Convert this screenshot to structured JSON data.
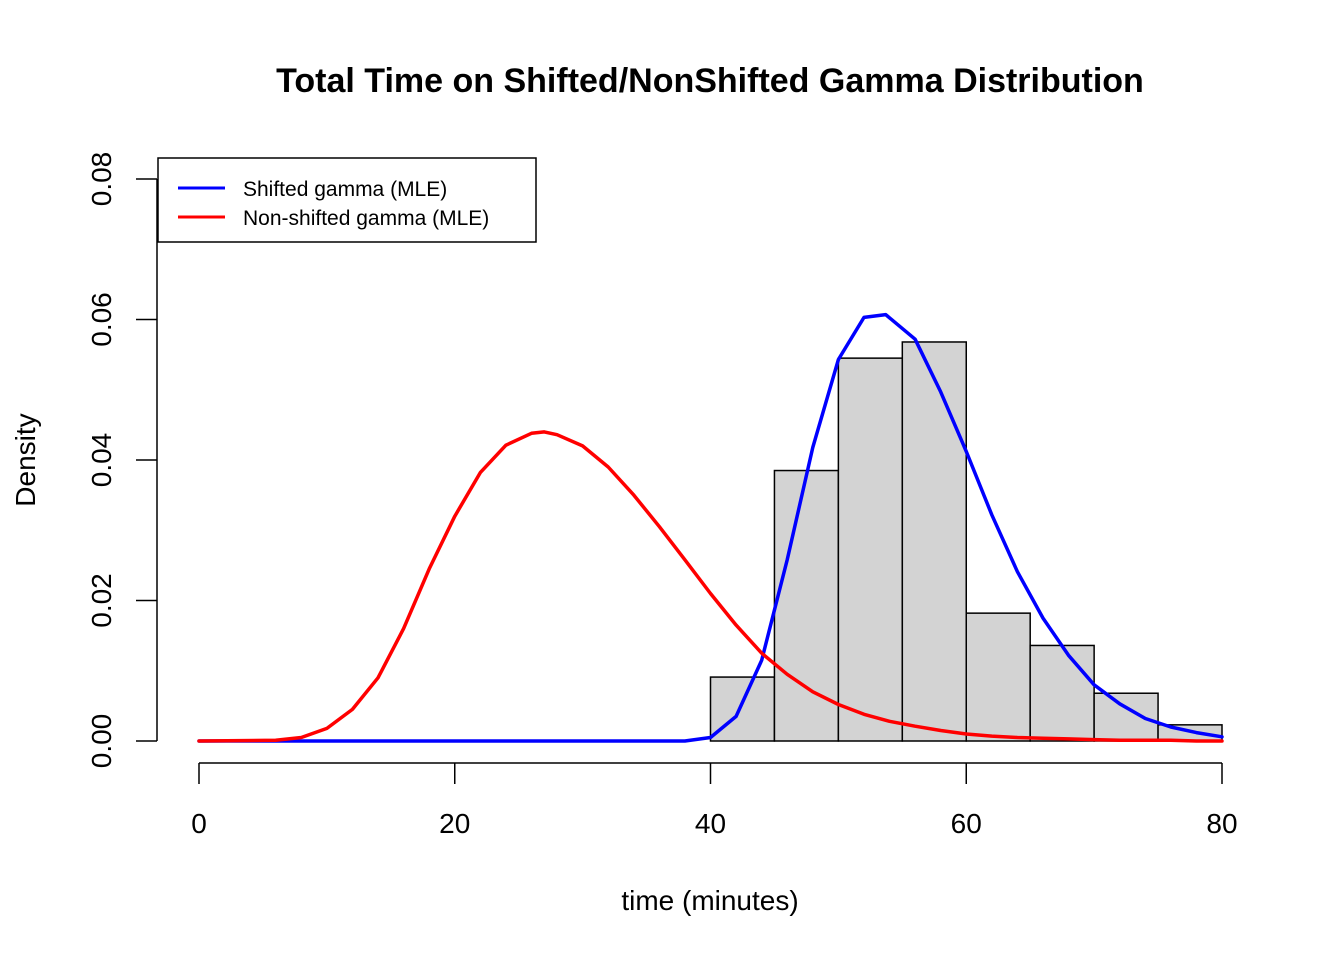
{
  "chart_data": {
    "type": "bar",
    "title": "Total Time on Shifted/NonShifted Gamma Distribution",
    "xlabel": "time (minutes)",
    "ylabel": "Density",
    "xlim": [
      0,
      80
    ],
    "ylim": [
      0,
      0.08
    ],
    "x_ticks": [
      0,
      20,
      40,
      60,
      80
    ],
    "y_ticks": [
      0,
      0.02,
      0.04,
      0.06,
      0.08
    ],
    "x_tick_labels": [
      "0",
      "20",
      "40",
      "60",
      "80"
    ],
    "y_tick_labels": [
      "0.00",
      "0.02",
      "0.04",
      "0.06",
      "0.08"
    ],
    "grid": false,
    "legend_position": "top-left",
    "histogram": {
      "bins": [
        {
          "start": 40,
          "end": 45,
          "density": 0.0091
        },
        {
          "start": 45,
          "end": 50,
          "density": 0.0385
        },
        {
          "start": 50,
          "end": 55,
          "density": 0.0545
        },
        {
          "start": 55,
          "end": 60,
          "density": 0.0568
        },
        {
          "start": 60,
          "end": 65,
          "density": 0.0182
        },
        {
          "start": 65,
          "end": 70,
          "density": 0.0136
        },
        {
          "start": 70,
          "end": 75,
          "density": 0.0068
        },
        {
          "start": 75,
          "end": 80,
          "density": 0.0023
        }
      ],
      "fill": "#d3d3d3",
      "stroke": "#000000"
    },
    "series": [
      {
        "name": "Shifted gamma (MLE)",
        "color": "#0000ff",
        "x": [
          0,
          10,
          20,
          30,
          38,
          40,
          42,
          44,
          46,
          48,
          50,
          52,
          53.7,
          56,
          58,
          60,
          62,
          64,
          66,
          68,
          70,
          72,
          74,
          76,
          78,
          80
        ],
        "values": [
          0,
          0,
          0,
          0,
          0,
          0.0005,
          0.0035,
          0.0115,
          0.0258,
          0.0418,
          0.0543,
          0.0603,
          0.0607,
          0.0572,
          0.0497,
          0.0412,
          0.0322,
          0.0241,
          0.0175,
          0.0122,
          0.008,
          0.0053,
          0.0032,
          0.002,
          0.0012,
          0.0006
        ]
      },
      {
        "name": "Non-shifted gamma (MLE)",
        "color": "#ff0000",
        "x": [
          0,
          6,
          8,
          10,
          12,
          14,
          16,
          18,
          20,
          22,
          24,
          26,
          27,
          28,
          30,
          32,
          34,
          36,
          38,
          40,
          42,
          44,
          46,
          48,
          50,
          52,
          54,
          56,
          58,
          60,
          62,
          64,
          66,
          68,
          70,
          72,
          74,
          76,
          78,
          80
        ],
        "values": [
          0,
          0.0001,
          0.0005,
          0.0018,
          0.0045,
          0.009,
          0.016,
          0.0245,
          0.032,
          0.0382,
          0.0421,
          0.0438,
          0.044,
          0.0436,
          0.042,
          0.039,
          0.035,
          0.0305,
          0.0258,
          0.021,
          0.0165,
          0.0125,
          0.0095,
          0.007,
          0.0052,
          0.0038,
          0.0028,
          0.0021,
          0.0015,
          0.001,
          0.0007,
          0.0005,
          0.0004,
          0.0003,
          0.0002,
          0.0001,
          0.0001,
          0.0001,
          0,
          0
        ]
      }
    ]
  }
}
